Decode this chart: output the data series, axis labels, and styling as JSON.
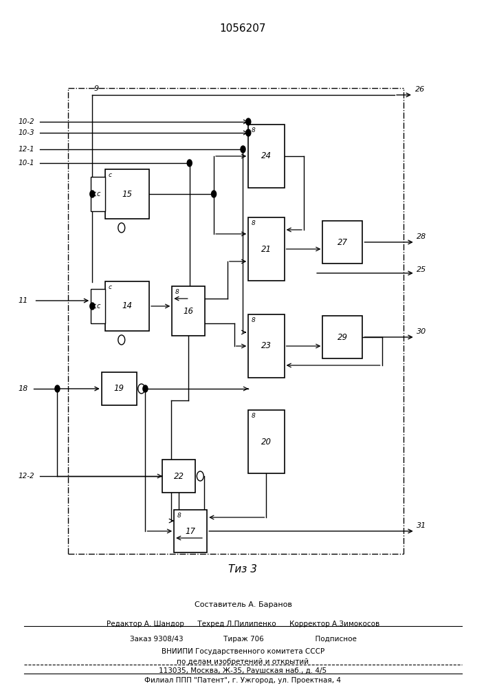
{
  "title": "1056207",
  "fig_label": "Τиз 3",
  "bg_color": "#ffffff",
  "line_color": "#000000",
  "footer": {
    "line1": "Составитель А. Баранов",
    "line2": "Редактор А. Шандор      Техред Л.Пилипенко      Корректор А.Зимокосов",
    "line3": "Заказ 9308/43                  Тираж 706                       Подписное",
    "line4": "ВНИИПИ Государственного комитета СССР",
    "line5": "по делам изобретений и открытий",
    "line6": "113035, Москва, Ж-35, Раушская наб., д. 4/5",
    "line7": "Филиал ППП \"Патент\", г. Ужгород, ул. Проектная, 4"
  }
}
